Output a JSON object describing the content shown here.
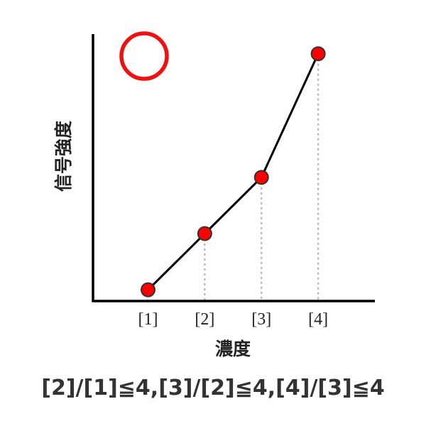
{
  "chart_data": {
    "type": "line",
    "x": [
      1,
      2,
      3,
      4
    ],
    "categories": [
      "[1]",
      "[2]",
      "[3]",
      "[4]"
    ],
    "values": [
      1,
      2,
      3,
      5.2
    ],
    "xlabel": "濃度",
    "ylabel": "信号強度",
    "title": "",
    "xlim": [
      0.03,
      5.0
    ],
    "ylim": [
      0.8,
      5.55
    ],
    "grid": false,
    "legend": "none",
    "marker_color": "#ff0000",
    "marker_edge_color": "#333333",
    "line_color": "#000000",
    "guide_color": "#bbbbbb"
  },
  "badge": {
    "symbol": "circle",
    "meaning": "maru-correct-mark",
    "color": "#ee1111"
  },
  "footer": {
    "formula": "[2]/[1]≦4,[3]/[2]≦4,[4]/[3]≦4"
  }
}
